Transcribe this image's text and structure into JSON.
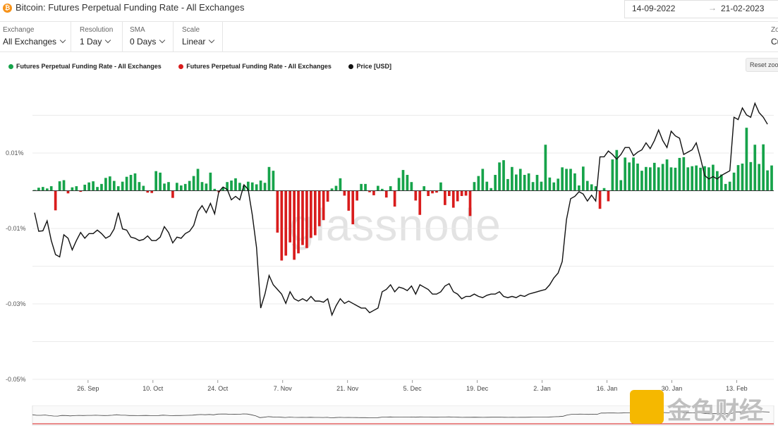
{
  "header": {
    "coin_icon": "bitcoin-icon",
    "title": "Bitcoin: Futures Perpetual Funding Rate - All Exchanges",
    "date_from": "14-09-2022",
    "date_arrow": "→",
    "date_to": "21-02-2023"
  },
  "controls": [
    {
      "label": "Exchange",
      "value": "All Exchanges"
    },
    {
      "label": "Resolution",
      "value": "1 Day"
    },
    {
      "label": "SMA",
      "value": "0 Days"
    },
    {
      "label": "Scale",
      "value": "Linear"
    }
  ],
  "zoom": {
    "label": "Zo",
    "value": "Cu"
  },
  "legend": [
    {
      "name": "Futures Perpetual Funding Rate - All Exchanges",
      "color": "#16a34a"
    },
    {
      "name": "Futures Perpetual Funding Rate - All Exchanges",
      "color": "#d91c1c"
    },
    {
      "name": "Price [USD]",
      "color": "#111111"
    }
  ],
  "reset_zoom": "Reset zoo",
  "watermark": "glassnode",
  "watermark2": "金色财经",
  "colors": {
    "positive": "#16a34a",
    "negative": "#d91c1c",
    "price": "#111111",
    "grid": "#ebebeb"
  },
  "chart_data": {
    "type": "bar",
    "title": "Bitcoin: Futures Perpetual Funding Rate - All Exchanges",
    "x_start": "2022-09-14",
    "x_end": "2023-02-21",
    "xtick_labels": [
      "26. Sep",
      "10. Oct",
      "24. Oct",
      "7. Nov",
      "21. Nov",
      "5. Dec",
      "19. Dec",
      "2. Jan",
      "16. Jan",
      "30. Jan",
      "13. Feb"
    ],
    "xtick_dates": [
      "2022-09-26",
      "2022-10-10",
      "2022-10-24",
      "2022-11-07",
      "2022-11-21",
      "2022-12-05",
      "2022-12-19",
      "2023-01-02",
      "2023-01-16",
      "2023-01-30",
      "2023-02-13"
    ],
    "ytick_labels": [
      "0.01%",
      "-0.01%",
      "-0.03%",
      "-0.05%"
    ],
    "ytick_values": [
      0.01,
      -0.01,
      -0.03,
      -0.05
    ],
    "ylim": [
      -0.05,
      0.0275
    ],
    "funding_rate": [
      0.0002,
      0.0008,
      0.001,
      0.0006,
      0.0012,
      -0.0052,
      0.0025,
      0.0028,
      -0.0007,
      0.0009,
      0.0012,
      -0.0003,
      0.0016,
      0.0022,
      0.0025,
      0.001,
      0.0018,
      0.0034,
      0.0038,
      0.0026,
      0.0012,
      0.0024,
      0.0037,
      0.0042,
      0.0046,
      0.0023,
      0.0013,
      -0.0005,
      -0.0006,
      0.0052,
      0.0048,
      0.0019,
      0.0023,
      -0.0019,
      0.0021,
      0.0014,
      0.0018,
      0.0026,
      0.0039,
      0.0058,
      0.0023,
      0.0019,
      0.0048,
      0.0005,
      -0.0004,
      0.0009,
      0.0023,
      0.0027,
      0.0033,
      0.0021,
      0.0014,
      0.0024,
      0.0022,
      0.0017,
      0.0027,
      0.0021,
      0.0063,
      0.0053,
      -0.0111,
      -0.0185,
      -0.0172,
      -0.0137,
      -0.0183,
      -0.0166,
      -0.0144,
      -0.0152,
      -0.0125,
      -0.0118,
      -0.0094,
      -0.0078,
      -0.0029,
      0.0006,
      0.0013,
      0.0033,
      -0.0013,
      -0.0053,
      -0.0089,
      -0.0026,
      0.0018,
      0.0018,
      -0.0004,
      -0.0012,
      0.0013,
      0.0005,
      -0.0018,
      0.0012,
      -0.0042,
      0.0034,
      0.0055,
      0.0042,
      0.0023,
      -0.0026,
      -0.0064,
      0.0012,
      -0.0014,
      -0.0007,
      -0.0005,
      0.0022,
      -0.0038,
      -0.0014,
      -0.0045,
      -0.0028,
      -0.0014,
      -0.0013,
      -0.0067,
      0.0023,
      0.0039,
      0.0058,
      0.0024,
      0.0007,
      0.0042,
      0.0075,
      0.0081,
      0.0031,
      0.0063,
      0.0043,
      0.0058,
      0.0042,
      0.0046,
      0.0023,
      0.0042,
      0.0024,
      0.0122,
      0.0035,
      0.0022,
      0.0032,
      0.0062,
      0.0058,
      0.0058,
      0.0046,
      0.0014,
      0.0064,
      0.0026,
      0.0017,
      0.0012,
      -0.0048,
      0.0007,
      -0.0028,
      0.0083,
      0.0108,
      0.0028,
      0.0088,
      0.0075,
      0.0088,
      0.0072,
      0.0053,
      0.0063,
      0.0062,
      0.0074,
      0.0062,
      0.0071,
      0.0083,
      0.0062,
      0.0061,
      0.0087,
      0.0089,
      0.0062,
      0.0065,
      0.0067,
      0.0061,
      0.0065,
      0.0062,
      0.0069,
      0.0052,
      0.0043,
      0.0018,
      0.0024,
      0.0048,
      0.0068,
      0.0072,
      0.0167,
      0.0076,
      0.0122,
      0.0071,
      0.0123,
      0.0054,
      0.0067
    ],
    "price_usd": [
      20300,
      19500,
      19520,
      19950,
      19100,
      18500,
      18400,
      19350,
      19200,
      18700,
      19100,
      19450,
      19200,
      19400,
      19400,
      19550,
      19400,
      19200,
      19300,
      19600,
      20300,
      19600,
      19550,
      19250,
      19200,
      19100,
      19150,
      19300,
      19100,
      19100,
      19250,
      19700,
      19450,
      19000,
      19250,
      19200,
      19400,
      19500,
      19750,
      20350,
      20600,
      20300,
      20700,
      20250,
      21200,
      21400,
      21300,
      20850,
      21000,
      20850,
      21500,
      21300,
      20200,
      18800,
      16200,
      16800,
      17600,
      17200,
      17000,
      16800,
      16400,
      16900,
      16600,
      16500,
      16600,
      16500,
      16700,
      16500,
      16500,
      16450,
      16600,
      15900,
      16300,
      16600,
      16400,
      16500,
      16400,
      16300,
      16200,
      16200,
      16000,
      16100,
      16200,
      16900,
      17000,
      17200,
      16900,
      17100,
      17050,
      16950,
      17150,
      16800,
      17200,
      17100,
      17000,
      16800,
      16800,
      16900,
      17150,
      17250,
      16900,
      16800,
      16600,
      16700,
      16700,
      16800,
      16700,
      16650,
      16750,
      16800,
      16800,
      16900,
      16700,
      16650,
      16700,
      16650,
      16750,
      16700,
      16800,
      16850,
      16900,
      16950,
      17000,
      17200,
      17500,
      17700,
      18200,
      20000,
      20900,
      21000,
      21200,
      21100,
      20800,
      21050,
      20800,
      22700,
      22700,
      22950,
      22800,
      22600,
      22800,
      23100,
      23100,
      22750,
      22900,
      23000,
      23300,
      23050,
      23400,
      23850,
      23400,
      23100,
      23800,
      23600,
      23500,
      22800,
      22900,
      23000,
      23300,
      22650,
      21900,
      21750,
      21850,
      21750,
      21900,
      22000,
      22100,
      24400,
      24300,
      24800,
      24500,
      24400,
      25000,
      24600,
      24400,
      24100
    ]
  }
}
